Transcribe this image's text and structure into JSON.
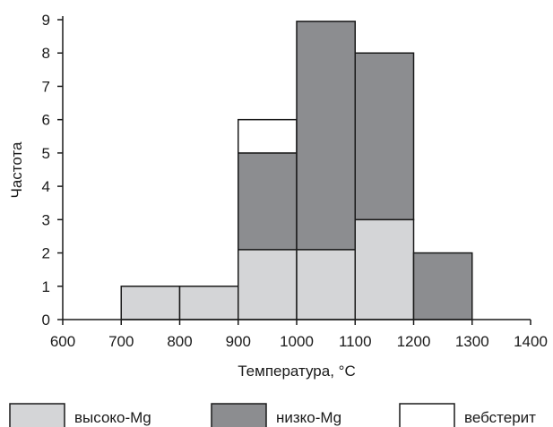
{
  "chart_data": {
    "type": "bar",
    "stacked": true,
    "histogram": true,
    "xlabel": "Температура, °C",
    "ylabel": "Частота",
    "xlim": [
      600,
      1400
    ],
    "ylim": [
      0,
      9
    ],
    "x_ticks": [
      "600",
      "700",
      "800",
      "900",
      "1000",
      "1100",
      "1200",
      "1300",
      "1400"
    ],
    "y_ticks": [
      "0",
      "1",
      "2",
      "3",
      "4",
      "5",
      "6",
      "7",
      "8",
      "9"
    ],
    "bins": [
      [
        700,
        800
      ],
      [
        800,
        900
      ],
      [
        900,
        1000
      ],
      [
        1000,
        1100
      ],
      [
        1100,
        1200
      ],
      [
        1200,
        1300
      ]
    ],
    "series": [
      {
        "name": "высоко-Mg",
        "color": "#d4d5d7",
        "values": [
          1,
          1,
          2.1,
          2.1,
          3,
          0
        ]
      },
      {
        "name": "низко-Mg",
        "color": "#8c8d90",
        "values": [
          0,
          0,
          2.9,
          6.85,
          5,
          2
        ]
      },
      {
        "name": "вебстерит",
        "color": "#ffffff",
        "values": [
          0,
          0,
          1,
          0,
          0,
          0
        ]
      }
    ],
    "grid": false,
    "legend_position": "bottom"
  }
}
